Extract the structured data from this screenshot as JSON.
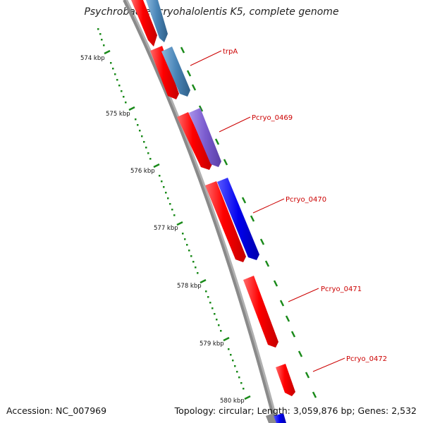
{
  "title": "Psychrobacter cryohalolentis K5, complete genome",
  "accession": "Accession: NC_007969",
  "summary": "Topology: circular; Length: 3,059,876 bp; Genes: 2,532",
  "ticks": [
    "574 kbp",
    "575 kbp",
    "576 kbp",
    "577 kbp",
    "578 kbp",
    "579 kbp",
    "580 kbp"
  ],
  "gene_labels": [
    "trpA",
    "Pcryo_0469",
    "Pcryo_0470",
    "Pcryo_0471",
    "Pcryo_0472"
  ],
  "colors": {
    "cds": "#ff0000",
    "gene_steel": "#4a86b8",
    "gene_purple": "#7b5ccf",
    "gene_blue": "#0000ee",
    "backbone": "#808080",
    "ticks": "#1a8a1a",
    "label_line": "#cc0000"
  }
}
